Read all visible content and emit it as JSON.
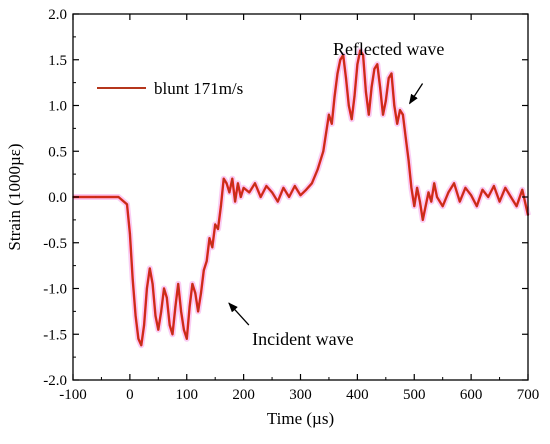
{
  "chart_data": {
    "type": "line",
    "xlabel": "Time (µs)",
    "ylabel": "Strain (1000µε)",
    "xlim": [
      -100,
      700
    ],
    "ylim": [
      -2.0,
      2.0
    ],
    "xticks": [
      "-100",
      "0",
      "100",
      "200",
      "300",
      "400",
      "500",
      "600",
      "700"
    ],
    "yticks": [
      "-2.0",
      "-1.5",
      "-1.0",
      "-0.5",
      "0.0",
      "0.5",
      "1.0",
      "1.5",
      "2.0"
    ],
    "grid": false,
    "legend_placement": "top-left",
    "series": [
      {
        "name": "blunt 171m/s",
        "color": "#b5361c",
        "highlight_color": "#ff1a1a",
        "glow_color": "#f7b8ee",
        "x": [
          -100,
          -60,
          -20,
          -5,
          0,
          5,
          10,
          15,
          20,
          25,
          30,
          35,
          40,
          45,
          50,
          55,
          60,
          65,
          70,
          75,
          80,
          85,
          90,
          95,
          100,
          105,
          110,
          115,
          120,
          125,
          130,
          135,
          140,
          145,
          150,
          155,
          160,
          165,
          170,
          175,
          180,
          185,
          190,
          195,
          200,
          210,
          220,
          230,
          240,
          250,
          260,
          270,
          280,
          290,
          300,
          310,
          320,
          330,
          340,
          345,
          350,
          355,
          360,
          365,
          370,
          375,
          380,
          385,
          390,
          395,
          400,
          405,
          410,
          415,
          420,
          425,
          430,
          435,
          440,
          445,
          450,
          455,
          460,
          465,
          470,
          475,
          480,
          485,
          490,
          495,
          500,
          505,
          510,
          515,
          520,
          525,
          530,
          535,
          540,
          550,
          560,
          570,
          580,
          590,
          600,
          610,
          620,
          630,
          640,
          650,
          660,
          670,
          680,
          690,
          700
        ],
        "values": [
          0.0,
          0.0,
          0.0,
          -0.08,
          -0.4,
          -0.9,
          -1.3,
          -1.55,
          -1.62,
          -1.4,
          -1.0,
          -0.78,
          -0.95,
          -1.3,
          -1.45,
          -1.25,
          -1.0,
          -1.1,
          -1.4,
          -1.5,
          -1.2,
          -0.95,
          -1.25,
          -1.45,
          -1.55,
          -1.2,
          -0.95,
          -1.05,
          -1.25,
          -1.05,
          -0.8,
          -0.7,
          -0.45,
          -0.55,
          -0.3,
          -0.35,
          -0.1,
          0.2,
          0.15,
          0.05,
          0.2,
          -0.05,
          0.15,
          0.0,
          0.1,
          0.05,
          0.15,
          0.0,
          0.12,
          0.05,
          -0.05,
          0.1,
          0.0,
          0.12,
          0.02,
          0.08,
          0.15,
          0.3,
          0.5,
          0.7,
          0.9,
          0.8,
          1.1,
          1.35,
          1.5,
          1.55,
          1.3,
          1.0,
          0.85,
          1.1,
          1.45,
          1.6,
          1.55,
          1.15,
          0.9,
          1.2,
          1.4,
          1.45,
          1.2,
          0.9,
          1.05,
          1.3,
          1.35,
          1.0,
          0.8,
          0.95,
          0.9,
          0.65,
          0.4,
          0.1,
          -0.1,
          0.1,
          -0.05,
          -0.25,
          -0.1,
          0.05,
          -0.05,
          0.15,
          0.0,
          -0.1,
          0.05,
          0.15,
          -0.05,
          0.1,
          0.02,
          -0.1,
          0.08,
          0.0,
          0.12,
          -0.05,
          0.1,
          0.0,
          -0.1,
          0.08,
          -0.2
        ]
      }
    ],
    "annotations": [
      {
        "text": "Reflected wave",
        "x": 455,
        "y": 1.55,
        "arrow_to": [
          490,
          1.0
        ]
      },
      {
        "text": "Incident wave",
        "x": 215,
        "y": -1.62,
        "arrow_to": [
          160,
          -1.05
        ]
      }
    ]
  }
}
